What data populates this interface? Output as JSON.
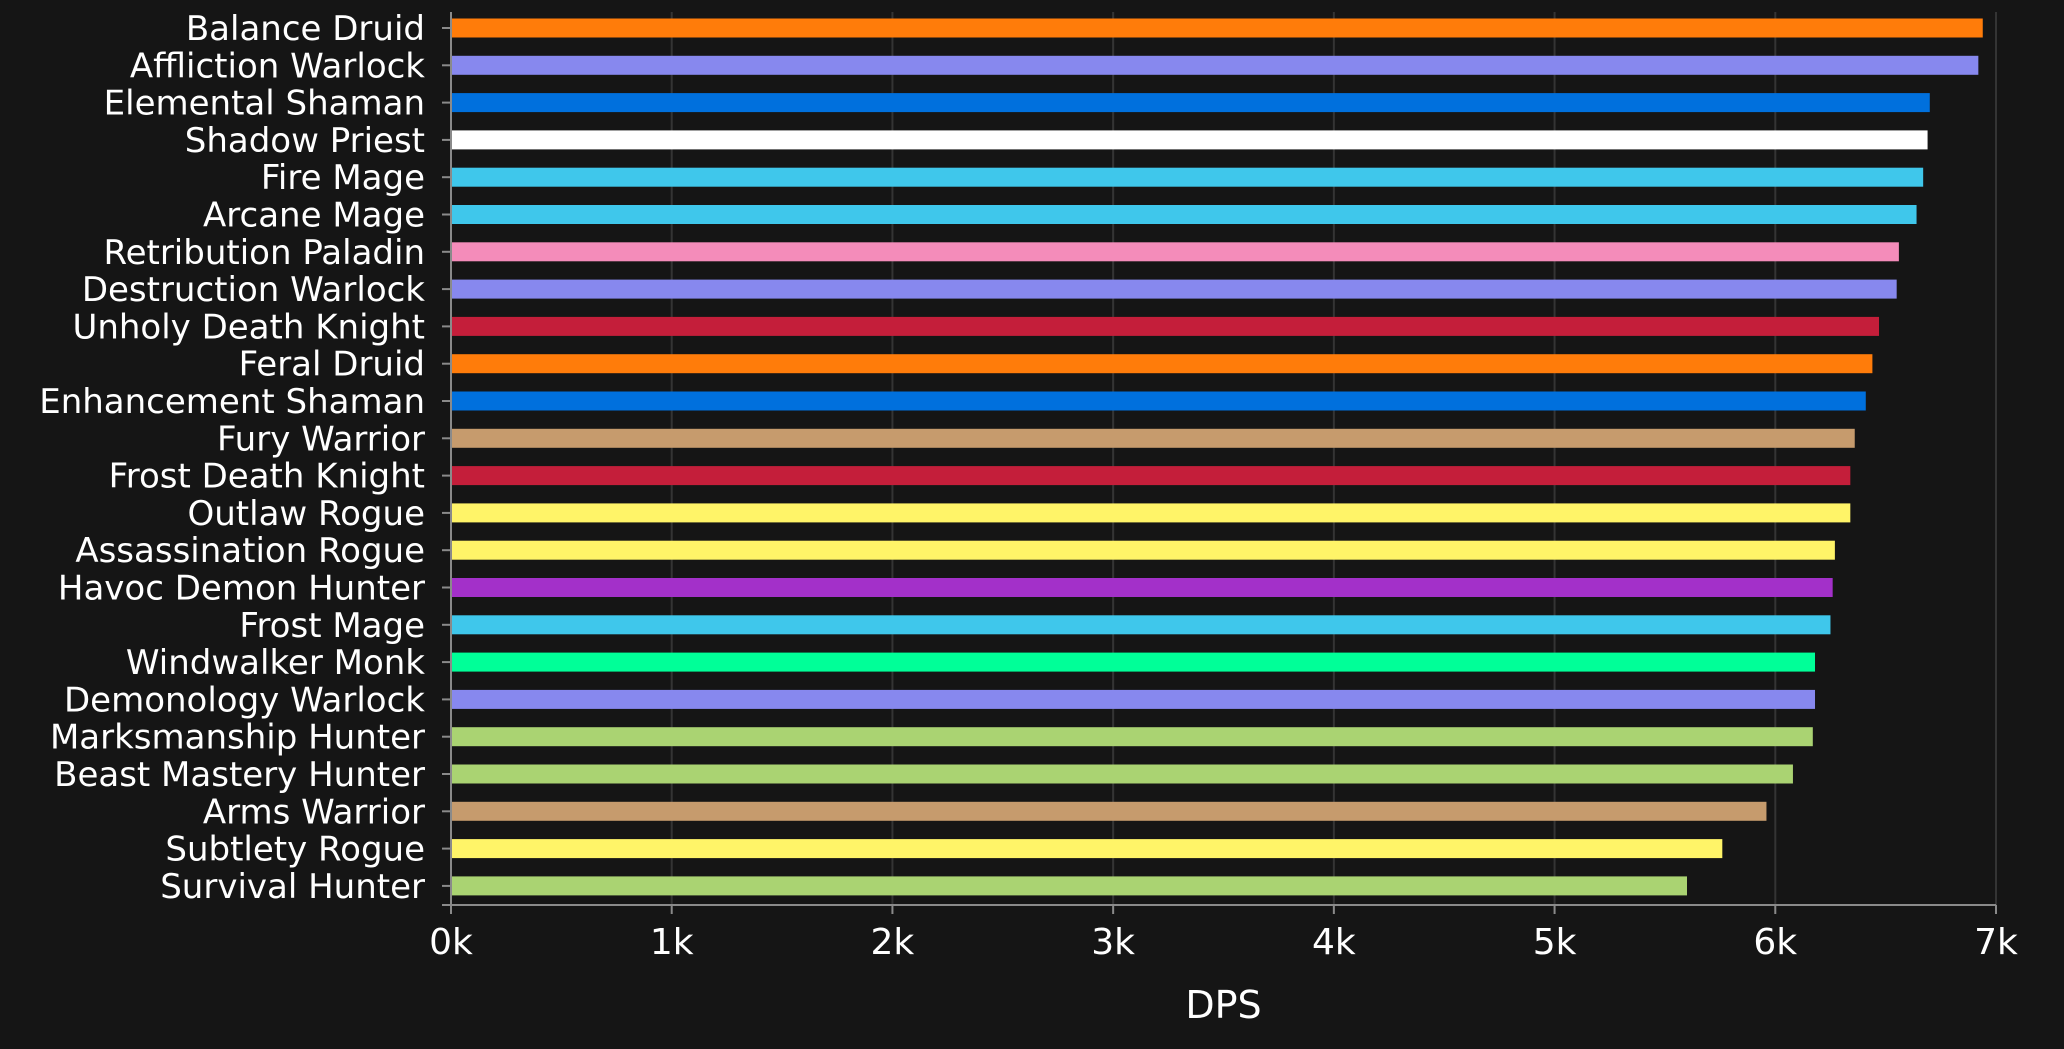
{
  "chart_data": {
    "type": "bar",
    "orientation": "horizontal",
    "categories": [
      "Balance Druid",
      "Affliction Warlock",
      "Elemental Shaman",
      "Shadow Priest",
      "Fire Mage",
      "Arcane Mage",
      "Retribution Paladin",
      "Destruction Warlock",
      "Unholy Death Knight",
      "Feral Druid",
      "Enhancement Shaman",
      "Fury Warrior",
      "Frost Death Knight",
      "Outlaw Rogue",
      "Assassination Rogue",
      "Havoc Demon Hunter",
      "Frost Mage",
      "Windwalker Monk",
      "Demonology Warlock",
      "Marksmanship Hunter",
      "Beast Mastery Hunter",
      "Arms Warrior",
      "Subtlety Rogue",
      "Survival Hunter"
    ],
    "values": [
      6940,
      6920,
      6700,
      6690,
      6670,
      6640,
      6560,
      6550,
      6470,
      6440,
      6410,
      6360,
      6340,
      6340,
      6270,
      6260,
      6250,
      6180,
      6180,
      6170,
      6080,
      5960,
      5760,
      5600
    ],
    "colors": [
      "#ff7c0a",
      "#8788ee",
      "#0070dd",
      "#ffffff",
      "#3fc7eb",
      "#3fc7eb",
      "#f48cba",
      "#8788ee",
      "#c41e3a",
      "#ff7c0a",
      "#0070dd",
      "#c69b6d",
      "#c41e3a",
      "#fff468",
      "#fff468",
      "#a330c9",
      "#3fc7eb",
      "#00ff98",
      "#8788ee",
      "#aad372",
      "#aad372",
      "#c69b6d",
      "#fff468",
      "#aad372"
    ],
    "xlabel": "DPS",
    "ylabel": "",
    "xlim": [
      0,
      7000
    ],
    "xticks": [
      "0k",
      "1k",
      "2k",
      "3k",
      "4k",
      "5k",
      "6k",
      "7k"
    ],
    "xtick_values": [
      0,
      1000,
      2000,
      3000,
      4000,
      5000,
      6000,
      7000
    ],
    "grid": true,
    "legend": "none"
  }
}
